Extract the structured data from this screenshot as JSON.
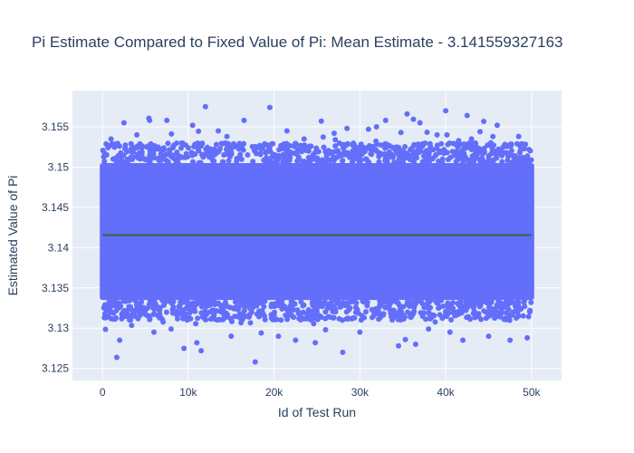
{
  "chart_data": {
    "type": "scatter",
    "title": "Pi Estimate Compared to Fixed Value of Pi: Mean Estimate - 3.141559327163",
    "xlabel": "Id of Test Run",
    "ylabel": "Estimated Value of Pi",
    "xlim": [
      -3500,
      53500
    ],
    "ylim": [
      3.1235,
      3.1595
    ],
    "x_ticks": [
      {
        "value": 0,
        "label": "0"
      },
      {
        "value": 10000,
        "label": "10k"
      },
      {
        "value": 20000,
        "label": "20k"
      },
      {
        "value": 30000,
        "label": "30k"
      },
      {
        "value": 40000,
        "label": "40k"
      },
      {
        "value": 50000,
        "label": "50k"
      }
    ],
    "y_ticks": [
      {
        "value": 3.125,
        "label": "3.125"
      },
      {
        "value": 3.13,
        "label": "3.13"
      },
      {
        "value": 3.135,
        "label": "3.135"
      },
      {
        "value": 3.14,
        "label": "3.14"
      },
      {
        "value": 3.145,
        "label": "3.145"
      },
      {
        "value": 3.15,
        "label": "3.15"
      },
      {
        "value": 3.155,
        "label": "3.155"
      }
    ],
    "grid": true,
    "plot_bgcolor": "#e5ecf6",
    "series": [
      {
        "mode": "markers",
        "color": "#636efa",
        "dense_band": {
          "x_range": [
            0,
            50000
          ],
          "y_range": [
            3.1335,
            3.1505
          ]
        },
        "outliers": [
          [
            12000,
            3.1575
          ],
          [
            19500,
            3.1574
          ],
          [
            40000,
            3.157
          ],
          [
            42500,
            3.1564
          ],
          [
            35500,
            3.1566
          ],
          [
            2500,
            3.1555
          ],
          [
            5500,
            3.1558
          ],
          [
            7500,
            3.1558
          ],
          [
            10500,
            3.1552
          ],
          [
            16500,
            3.1558
          ],
          [
            25500,
            3.1557
          ],
          [
            33000,
            3.1558
          ],
          [
            37000,
            3.1555
          ],
          [
            46000,
            3.1552
          ],
          [
            28500,
            3.1548
          ],
          [
            31000,
            3.1547
          ],
          [
            13500,
            3.1545
          ],
          [
            21500,
            3.1545
          ],
          [
            44000,
            3.1544
          ],
          [
            48500,
            3.1538
          ],
          [
            9500,
            3.1275
          ],
          [
            11500,
            3.1272
          ],
          [
            17800,
            3.1258
          ],
          [
            22500,
            3.1285
          ],
          [
            24800,
            3.1282
          ],
          [
            28000,
            3.127
          ],
          [
            34500,
            3.1278
          ],
          [
            36500,
            3.128
          ],
          [
            42000,
            3.1285
          ],
          [
            49500,
            3.1288
          ],
          [
            2000,
            3.1285
          ],
          [
            6000,
            3.1295
          ],
          [
            8000,
            3.1299
          ],
          [
            15000,
            3.129
          ],
          [
            20500,
            3.129
          ],
          [
            30000,
            3.1295
          ],
          [
            38000,
            3.1299
          ],
          [
            45000,
            3.129
          ],
          [
            47500,
            3.1285
          ],
          [
            11000,
            3.1282
          ],
          [
            1000,
            3.1535
          ],
          [
            4000,
            3.154
          ],
          [
            14500,
            3.1538
          ],
          [
            23500,
            3.1535
          ],
          [
            27000,
            3.1542
          ],
          [
            39000,
            3.154
          ],
          [
            45500,
            3.1538
          ],
          [
            18500,
            3.1294
          ],
          [
            26000,
            3.1298
          ],
          [
            40500,
            3.1295
          ]
        ],
        "edge_density": 1400
      },
      {
        "mode": "lines",
        "color": "#2e6b3f",
        "x": [
          0,
          50000
        ],
        "y": [
          3.141559327163,
          3.141559327163
        ]
      }
    ]
  }
}
